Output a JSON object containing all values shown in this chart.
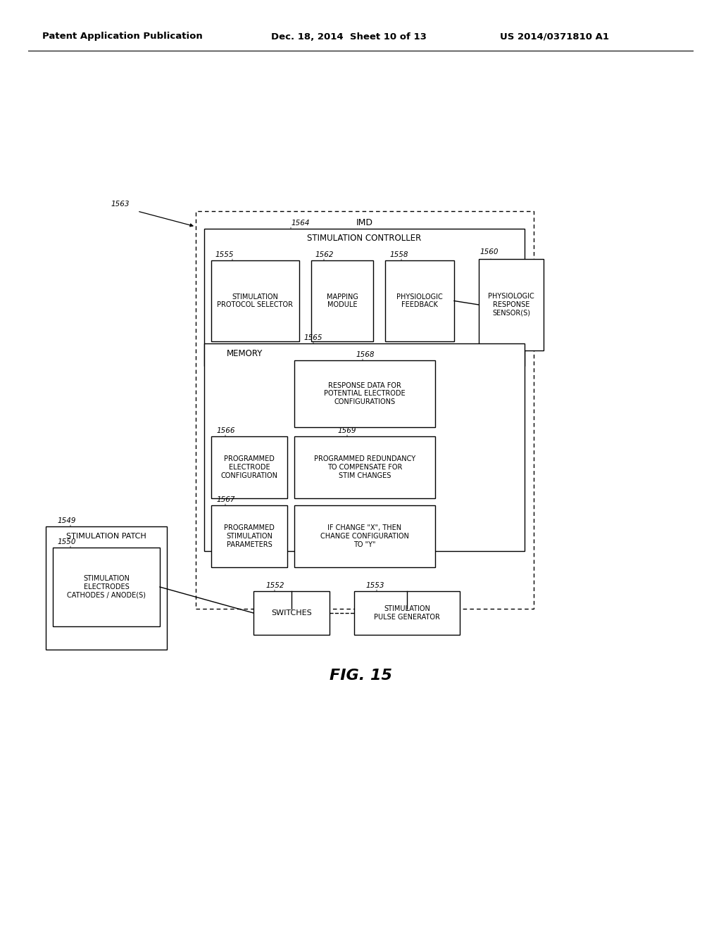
{
  "header_left": "Patent Application Publication",
  "header_mid": "Dec. 18, 2014  Sheet 10 of 13",
  "header_right": "US 2014/0371810 A1",
  "figure_label": "FIG. 15",
  "bg_color": "#ffffff"
}
